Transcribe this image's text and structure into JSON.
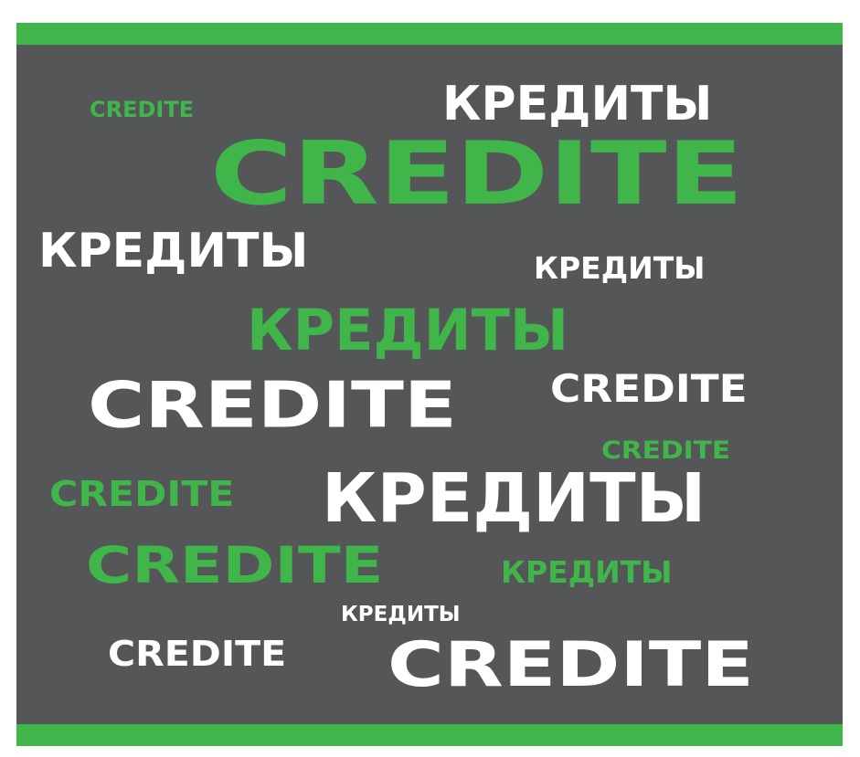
{
  "colors": {
    "background": "#555658",
    "accent_green": "#3fb54a",
    "text_white": "#ffffff",
    "page": "#ffffff"
  },
  "words": [
    {
      "text": "CREDITE",
      "color": "green"
    },
    {
      "text": "КРЕДИТЫ",
      "color": "white"
    },
    {
      "text": "CREDITE",
      "color": "green"
    },
    {
      "text": "КРЕДИТЫ",
      "color": "white"
    },
    {
      "text": "КРЕДИТЫ",
      "color": "white"
    },
    {
      "text": "КРЕДИТЫ",
      "color": "green"
    },
    {
      "text": "CREDITE",
      "color": "white"
    },
    {
      "text": "CREDITE",
      "color": "white"
    },
    {
      "text": "CREDITE",
      "color": "green"
    },
    {
      "text": "CREDITE",
      "color": "green"
    },
    {
      "text": "КРЕДИТЫ",
      "color": "white"
    },
    {
      "text": "CREDITE",
      "color": "green"
    },
    {
      "text": "КРЕДИТЫ",
      "color": "green"
    },
    {
      "text": "КРЕДИТЫ",
      "color": "white"
    },
    {
      "text": "CREDITE",
      "color": "white"
    },
    {
      "text": "CREDITE",
      "color": "white"
    }
  ]
}
